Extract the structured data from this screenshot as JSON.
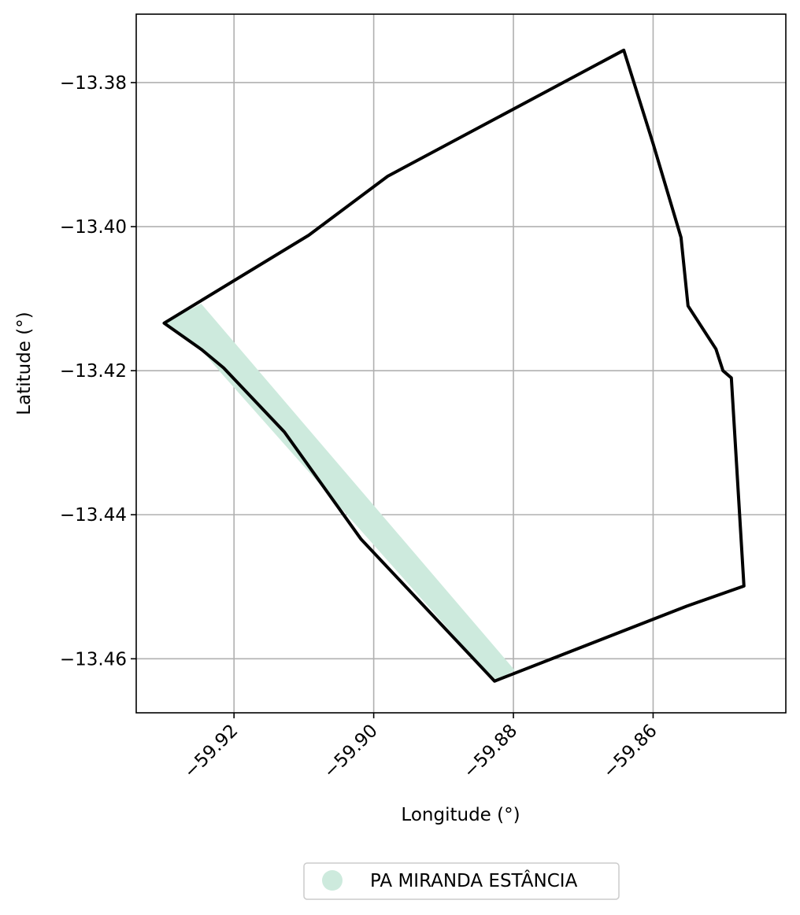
{
  "chart_data": {
    "type": "map",
    "xlabel": "Longitude (°)",
    "ylabel": "Latitude (°)",
    "xlim": [
      -59.934,
      -59.841
    ],
    "ylim": [
      -13.4675,
      -13.3705
    ],
    "x_ticks": [
      -59.92,
      -59.9,
      -59.88,
      -59.86
    ],
    "x_tick_labels": [
      "−59.92",
      "−59.90",
      "−59.88",
      "−59.86"
    ],
    "y_ticks": [
      -13.38,
      -13.4,
      -13.42,
      -13.44,
      -13.46
    ],
    "y_tick_labels": [
      "−13.38",
      "−13.40",
      "−13.42",
      "−13.44",
      "−13.46"
    ],
    "grid": true,
    "legend": {
      "placement": "below",
      "entries": [
        {
          "label": "PA MIRANDA ESTÂNCIA",
          "color": "#cdeadd"
        }
      ]
    },
    "shaded_area": {
      "name": "PA MIRANDA ESTÂNCIA",
      "color": "#cdeadd",
      "lon": [
        -59.93,
        -59.9247,
        -59.8798,
        -59.8827,
        -59.9216,
        -59.9248
      ],
      "lat": [
        -13.4134,
        -13.4107,
        -13.4616,
        -13.4631,
        -13.4206,
        -13.417
      ]
    },
    "boundary": {
      "color": "#000000",
      "lon": [
        -59.8642,
        -59.86,
        -59.856,
        -59.855,
        -59.851,
        -59.85,
        -59.8488,
        -59.847,
        -59.8552,
        -59.8827,
        -59.9018,
        -59.9128,
        -59.9215,
        -59.9246,
        -59.93,
        -59.9093,
        -59.898,
        -59.8642
      ],
      "lat": [
        -13.3755,
        -13.3885,
        -13.4015,
        -13.411,
        -13.417,
        -13.42,
        -13.421,
        -13.4499,
        -13.4527,
        -13.4631,
        -13.4434,
        -13.4285,
        -13.4196,
        -13.4171,
        -13.4134,
        -13.4012,
        -13.393,
        -13.3755
      ]
    }
  }
}
